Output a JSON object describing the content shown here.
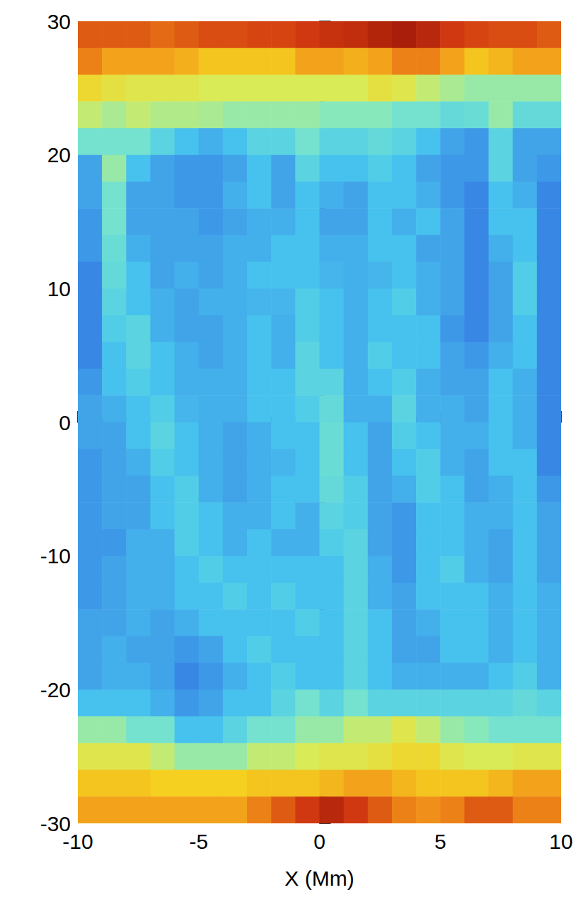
{
  "chart_data": {
    "type": "heatmap",
    "xlabel": "X (Mm)",
    "xlim": [
      -10,
      10
    ],
    "ylim": [
      -30,
      30
    ],
    "xticks": [
      -10,
      -5,
      0,
      5,
      10
    ],
    "yticks": [
      -30,
      -20,
      -10,
      0,
      10,
      20,
      30
    ],
    "grid": false,
    "zlim": [
      1.5,
      10
    ],
    "x": [
      -9.5,
      -8.5,
      -7.5,
      -6.5,
      -5.5,
      -4.5,
      -3.5,
      -2.5,
      -1.5,
      -0.5,
      0.5,
      1.5,
      2.5,
      3.5,
      4.5,
      5.5,
      6.5,
      7.5,
      8.5,
      9.5
    ],
    "y": [
      29,
      27,
      25,
      23,
      21,
      19,
      17,
      15,
      13,
      11,
      9,
      7,
      5,
      3,
      1,
      -1,
      -3,
      -5,
      -7,
      -9,
      -11,
      -13,
      -15,
      -17,
      -19,
      -21,
      -23,
      -25,
      -27,
      -29
    ],
    "cells": [
      [
        8.5,
        8.5,
        8.5,
        8.3,
        8.5,
        8.7,
        8.7,
        8.8,
        8.8,
        9,
        9.2,
        9.3,
        9.6,
        9.8,
        9.5,
        9,
        8.8,
        8.7,
        8.7,
        8.5
      ],
      [
        8,
        7.5,
        7.5,
        7.5,
        7.3,
        7,
        7,
        7,
        7,
        7.5,
        7.5,
        7.3,
        7.5,
        8,
        8,
        7.5,
        7,
        7.2,
        7.5,
        7.5
      ],
      [
        6.5,
        6.2,
        6,
        6,
        6,
        5.8,
        5.8,
        5.8,
        5.8,
        5.8,
        5.8,
        5.8,
        6.2,
        6,
        5.5,
        5.2,
        5,
        5,
        5,
        5
      ],
      [
        5.5,
        5.2,
        5.5,
        5.3,
        5.3,
        5.2,
        5,
        5,
        5,
        5,
        4.8,
        4.8,
        4.8,
        4.5,
        4.5,
        4.2,
        4.3,
        5,
        4.2,
        4.2
      ],
      [
        4.5,
        4.5,
        4.5,
        4,
        3.5,
        3.2,
        3.5,
        4,
        4,
        4.5,
        4,
        4,
        4.2,
        4,
        3.5,
        3,
        2.8,
        4,
        3,
        3
      ],
      [
        3,
        5,
        3.5,
        3,
        2.8,
        2.8,
        3,
        3.5,
        3,
        4,
        3.5,
        3.5,
        3.8,
        3.5,
        3,
        2.8,
        2.8,
        4,
        3,
        2.8
      ],
      [
        3,
        4.5,
        3,
        3,
        2.8,
        2.8,
        3.2,
        3.5,
        3,
        3.5,
        3.2,
        3,
        3.5,
        3.5,
        3.2,
        2.8,
        2.5,
        3.5,
        3.2,
        2.5
      ],
      [
        2.8,
        4.5,
        3,
        3,
        3,
        2.8,
        3,
        3.2,
        3.2,
        3.5,
        3,
        3,
        3.5,
        3.2,
        3.5,
        3,
        2.5,
        3.5,
        3.5,
        2.5
      ],
      [
        2.8,
        4.3,
        3.2,
        3,
        3,
        3,
        3.2,
        3.2,
        3.5,
        3.5,
        3.2,
        3.2,
        3.5,
        3.5,
        3,
        3,
        2.5,
        3.2,
        3.5,
        2.5
      ],
      [
        2.5,
        4.2,
        3.5,
        3,
        3.2,
        3,
        3.2,
        3.5,
        3.5,
        3.5,
        3.3,
        3.2,
        3.3,
        3.5,
        3.2,
        3,
        2.5,
        3,
        3.8,
        2.5
      ],
      [
        2.5,
        4,
        3.5,
        3.2,
        3,
        3.2,
        3.2,
        3.3,
        3.3,
        3.8,
        3.5,
        3.2,
        3.5,
        3.8,
        3.2,
        3,
        2.5,
        3,
        3.8,
        2.5
      ],
      [
        2.5,
        3.8,
        4,
        3.2,
        3,
        3,
        3.2,
        3.5,
        3.2,
        3.8,
        3.5,
        3.2,
        3.5,
        3.5,
        3.5,
        2.8,
        2.5,
        3,
        3.5,
        2.5
      ],
      [
        2.5,
        3.5,
        4,
        3.5,
        3.2,
        3,
        3.2,
        3.5,
        3.2,
        4,
        3.5,
        3.2,
        3.8,
        3.5,
        3.5,
        3,
        2.8,
        3.2,
        3.5,
        2.5
      ],
      [
        2.8,
        3.5,
        3.8,
        3.5,
        3.2,
        3.2,
        3.2,
        3.5,
        3.5,
        4,
        4,
        3.2,
        3.5,
        3.8,
        3.2,
        3,
        3,
        3.5,
        3.2,
        2.5
      ],
      [
        3,
        3.2,
        3.5,
        3.8,
        3.3,
        3.2,
        3.2,
        3.5,
        3.5,
        3.8,
        4.2,
        3.2,
        3.2,
        4,
        3.2,
        3.2,
        3,
        3.5,
        3.2,
        2.5
      ],
      [
        3,
        3,
        3.5,
        4,
        3.5,
        3.2,
        3,
        3.2,
        3.5,
        3.5,
        4.3,
        3.5,
        3,
        3.8,
        3.5,
        3.2,
        3.2,
        3.5,
        3.2,
        2.5
      ],
      [
        2.8,
        3,
        3.2,
        3.8,
        3.5,
        3.2,
        3,
        3.2,
        3.3,
        3.5,
        4.3,
        3.5,
        3,
        3.5,
        3.8,
        3.2,
        3,
        3.5,
        3.5,
        2.5
      ],
      [
        2.8,
        3,
        3,
        3.5,
        3.8,
        3.2,
        3,
        3.2,
        3.5,
        3.5,
        4.2,
        3.8,
        3,
        3.2,
        3.8,
        3.5,
        3,
        3.2,
        3.5,
        2.8
      ],
      [
        2.8,
        3,
        3,
        3.5,
        3.8,
        3.5,
        3.2,
        3.2,
        3.5,
        3.2,
        4,
        3.8,
        3,
        2.8,
        3.5,
        3.5,
        3.2,
        3.2,
        3.5,
        3
      ],
      [
        2.8,
        2.8,
        3.2,
        3.2,
        3.8,
        3.5,
        3.2,
        3.5,
        3.2,
        3.2,
        3.8,
        4,
        3,
        2.8,
        3.5,
        3.5,
        3.2,
        3,
        3.5,
        3
      ],
      [
        2.8,
        3,
        3.2,
        3.2,
        3.5,
        3.8,
        3.5,
        3.5,
        3.5,
        3.5,
        3.5,
        4,
        3.2,
        2.8,
        3.5,
        3.8,
        3.2,
        3,
        3.5,
        3
      ],
      [
        2.8,
        3,
        3.2,
        3.2,
        3.5,
        3.5,
        3.8,
        3.5,
        3.8,
        3.5,
        3.5,
        4,
        3.2,
        3,
        3.5,
        3.5,
        3.5,
        3.2,
        3.5,
        3.2
      ],
      [
        3,
        3,
        3.2,
        3,
        3.2,
        3.5,
        3.5,
        3.5,
        3.5,
        3.8,
        3.5,
        4,
        3.5,
        3,
        3.2,
        3.5,
        3.5,
        3.2,
        3.5,
        3.2
      ],
      [
        3,
        3.2,
        3,
        3,
        2.8,
        3,
        3.5,
        3.8,
        3.5,
        3.5,
        3.5,
        4,
        3.5,
        3,
        3,
        3.5,
        3.5,
        3.2,
        3.5,
        3.2
      ],
      [
        3,
        3.2,
        3.2,
        3,
        2.5,
        2.8,
        3.2,
        3.5,
        3.8,
        3.5,
        3.5,
        4,
        3.5,
        3.2,
        3.2,
        3.2,
        3.2,
        3.5,
        3.8,
        3.2
      ],
      [
        3.5,
        3.5,
        3.5,
        3.2,
        2.8,
        3,
        3.5,
        3.5,
        4,
        4.5,
        4,
        4.5,
        4,
        4,
        4,
        4,
        4,
        4,
        4.2,
        4
      ],
      [
        5,
        5,
        4.5,
        4.5,
        3.5,
        3.5,
        4,
        4.5,
        4.5,
        5,
        5,
        5.5,
        5.5,
        6,
        5.5,
        5,
        4.8,
        4.5,
        4.5,
        4.5
      ],
      [
        6,
        6,
        6,
        5.5,
        5,
        5,
        5,
        5.5,
        5.5,
        5.8,
        6,
        6,
        6.2,
        6.5,
        6.5,
        6,
        5.8,
        5.8,
        6,
        6
      ],
      [
        7,
        7,
        7,
        6.8,
        6.8,
        6.8,
        6.8,
        7,
        7,
        7,
        7.2,
        7.5,
        7.5,
        7.2,
        7,
        7,
        7,
        7.2,
        7.5,
        7.5
      ],
      [
        7.5,
        7.5,
        7.5,
        7.5,
        7.5,
        7.5,
        7.5,
        8,
        8.5,
        9,
        9.5,
        9,
        8.5,
        8,
        7.8,
        8,
        8.5,
        8.5,
        8,
        8
      ]
    ]
  }
}
